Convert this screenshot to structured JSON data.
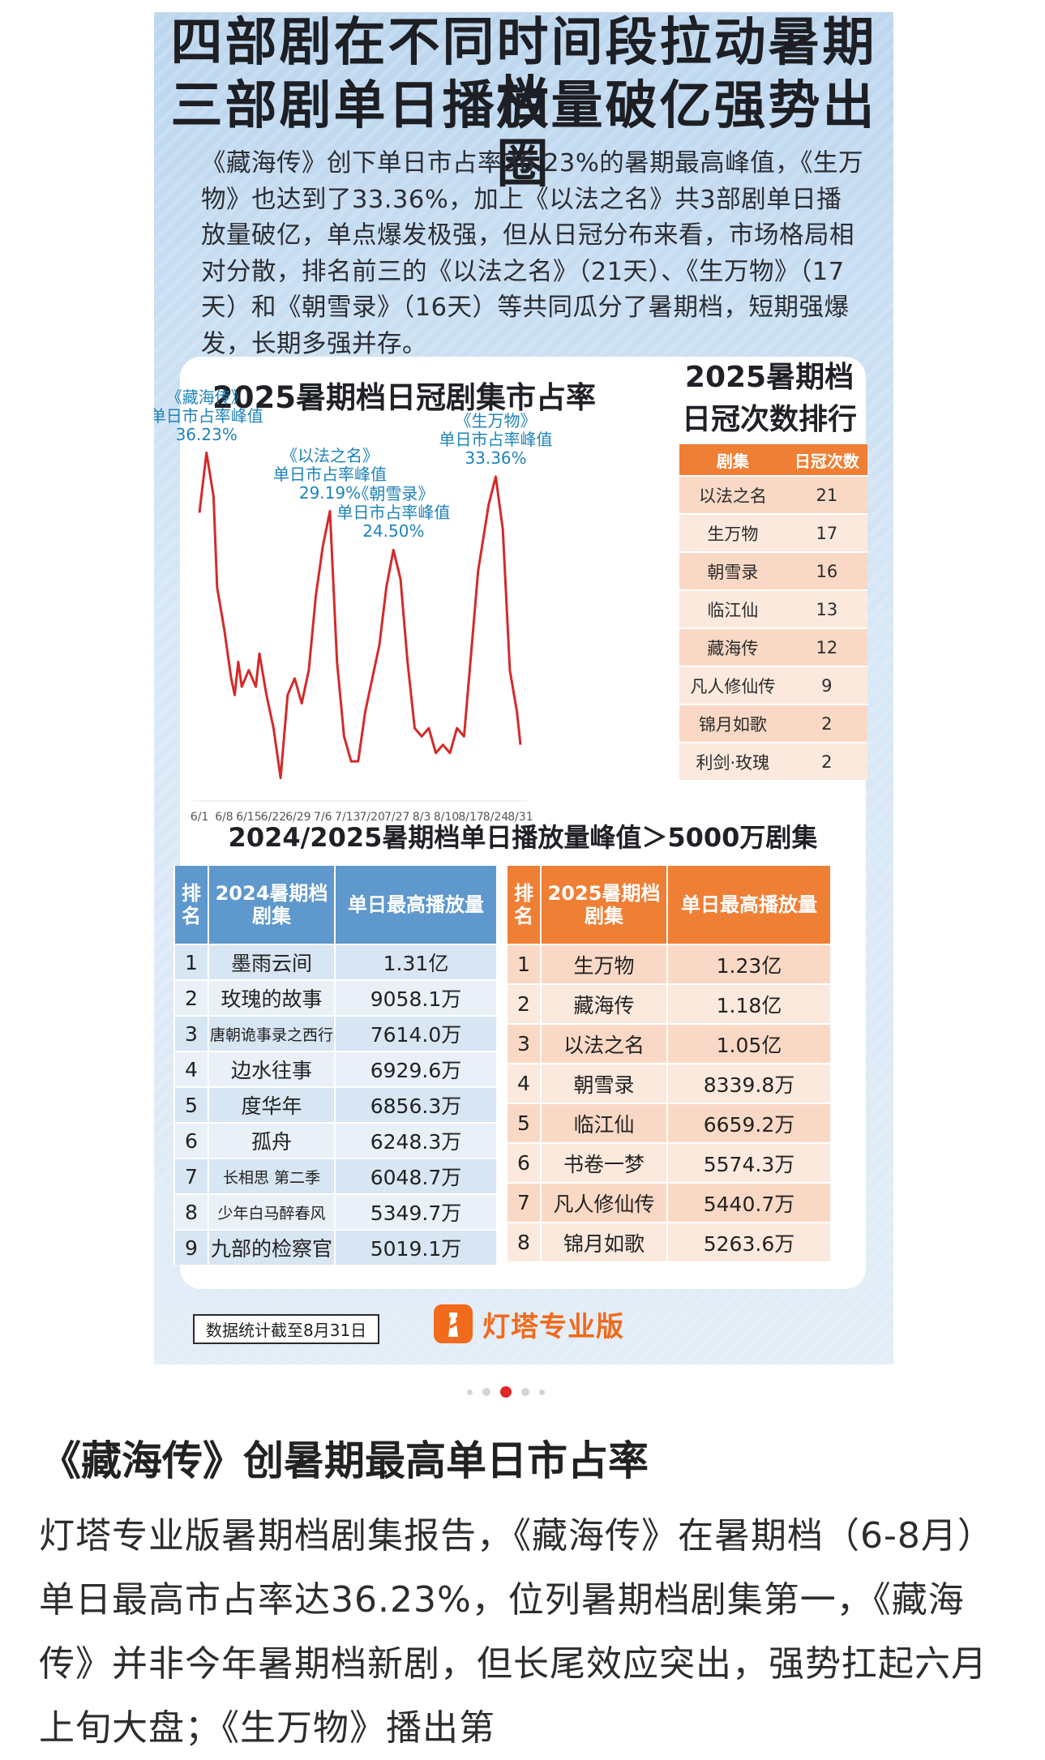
{
  "infographic": {
    "headline": [
      "四部剧在不同时间段拉动暑期档",
      "三部剧单日播放量破亿强势出圈"
    ],
    "intro": "《藏海传》创下单日市占率36.23%的暑期最高峰值，《生万物》也达到了33.36%，加上《以法之名》共3部剧单日播放量破亿，单点爆发极强，但从日冠分布来看，市场格局相对分散，排名前三的《以法之名》（21天）、《生万物》（17天）和《朝雪录》（16天）等共同瓜分了暑期档，短期强爆发，长期多强并存。",
    "footnote": "数据统计截至8月31日",
    "logo_text": "灯塔专业版"
  },
  "chart_data": [
    {
      "type": "line",
      "title": "2025暑期档日冠剧集市占率",
      "xlabel": "",
      "ylabel": "",
      "grid": false,
      "x_ticks": [
        "6/1",
        "6/8",
        "6/15",
        "6/22",
        "6/29",
        "7/6",
        "7/13",
        "7/20",
        "7/27",
        "8/3",
        "8/10",
        "8/17",
        "8/24",
        "8/31"
      ],
      "series_color": "#d42a2a",
      "points": [
        {
          "x": "6/1",
          "y": 29
        },
        {
          "x": "6/3",
          "y": 36.23
        },
        {
          "x": "6/5",
          "y": 31
        },
        {
          "x": "6/6",
          "y": 20
        },
        {
          "x": "6/8",
          "y": 15
        },
        {
          "x": "6/10",
          "y": 9
        },
        {
          "x": "6/11",
          "y": 7
        },
        {
          "x": "6/12",
          "y": 11
        },
        {
          "x": "6/13",
          "y": 8
        },
        {
          "x": "6/15",
          "y": 10
        },
        {
          "x": "6/17",
          "y": 8
        },
        {
          "x": "6/18",
          "y": 12
        },
        {
          "x": "6/20",
          "y": 7
        },
        {
          "x": "6/22",
          "y": 3
        },
        {
          "x": "6/24",
          "y": -3
        },
        {
          "x": "6/26",
          "y": 7
        },
        {
          "x": "6/28",
          "y": 9
        },
        {
          "x": "6/30",
          "y": 6
        },
        {
          "x": "7/2",
          "y": 10
        },
        {
          "x": "7/4",
          "y": 19
        },
        {
          "x": "7/6",
          "y": 25
        },
        {
          "x": "7/8",
          "y": 29.19
        },
        {
          "x": "7/10",
          "y": 11
        },
        {
          "x": "7/12",
          "y": 2
        },
        {
          "x": "7/14",
          "y": -1
        },
        {
          "x": "7/16",
          "y": -1
        },
        {
          "x": "7/18",
          "y": 5
        },
        {
          "x": "7/20",
          "y": 9
        },
        {
          "x": "7/22",
          "y": 13
        },
        {
          "x": "7/24",
          "y": 20
        },
        {
          "x": "7/26",
          "y": 24.5
        },
        {
          "x": "7/28",
          "y": 21
        },
        {
          "x": "7/30",
          "y": 11
        },
        {
          "x": "8/1",
          "y": 3
        },
        {
          "x": "8/3",
          "y": 2
        },
        {
          "x": "8/5",
          "y": 3
        },
        {
          "x": "8/7",
          "y": 0
        },
        {
          "x": "8/9",
          "y": 1
        },
        {
          "x": "8/11",
          "y": 0
        },
        {
          "x": "8/13",
          "y": 3
        },
        {
          "x": "8/15",
          "y": 2
        },
        {
          "x": "8/17",
          "y": 12
        },
        {
          "x": "8/19",
          "y": 22
        },
        {
          "x": "8/22",
          "y": 30
        },
        {
          "x": "8/24",
          "y": 33.36
        },
        {
          "x": "8/26",
          "y": 27
        },
        {
          "x": "8/28",
          "y": 10
        },
        {
          "x": "8/30",
          "y": 5
        },
        {
          "x": "8/31",
          "y": 1
        }
      ],
      "annotations": [
        {
          "x": "6/3",
          "y": 36.23,
          "name": "《藏海传》",
          "label": "单日市占率峰值",
          "value": "36.23%"
        },
        {
          "x": "7/8",
          "y": 29.19,
          "name": "《以法之名》",
          "label": "单日市占率峰值",
          "value": "29.19%"
        },
        {
          "x": "7/26",
          "y": 24.5,
          "name": "《朝雪录》",
          "label": "单日市占率峰值",
          "value": "24.50%"
        },
        {
          "x": "8/24",
          "y": 33.36,
          "name": "《生万物》",
          "label": "单日市占率峰值",
          "value": "33.36%"
        }
      ]
    },
    {
      "type": "table",
      "title": [
        "2025暑期档",
        "日冠次数排行"
      ],
      "headers": [
        "剧集",
        "日冠次数"
      ],
      "rows": [
        [
          "以法之名",
          "21"
        ],
        [
          "生万物",
          "17"
        ],
        [
          "朝雪录",
          "16"
        ],
        [
          "临江仙",
          "13"
        ],
        [
          "藏海传",
          "12"
        ],
        [
          "凡人修仙传",
          "9"
        ],
        [
          "锦月如歌",
          "2"
        ],
        [
          "利剑·玫瑰",
          "2"
        ]
      ]
    },
    {
      "type": "table",
      "title": "2024/2025暑期档单日播放量峰值＞5000万剧集",
      "headers": [
        "排名",
        "2024暑期档剧集",
        "单日最高播放量"
      ],
      "rows": [
        [
          "1",
          "墨雨云间",
          "1.31亿"
        ],
        [
          "2",
          "玫瑰的故事",
          "9058.1万"
        ],
        [
          "3",
          "唐朝诡事录之西行",
          "7614.0万"
        ],
        [
          "4",
          "边水往事",
          "6929.6万"
        ],
        [
          "5",
          "度华年",
          "6856.3万"
        ],
        [
          "6",
          "孤舟",
          "6248.3万"
        ],
        [
          "7",
          "长相思 第二季",
          "6048.7万"
        ],
        [
          "8",
          "少年白马醉春风",
          "5349.7万"
        ],
        [
          "9",
          "九部的检察官",
          "5019.1万"
        ]
      ]
    },
    {
      "type": "table",
      "headers": [
        "排名",
        "2025暑期档剧集",
        "单日最高播放量"
      ],
      "rows": [
        [
          "1",
          "生万物",
          "1.23亿"
        ],
        [
          "2",
          "藏海传",
          "1.18亿"
        ],
        [
          "3",
          "以法之名",
          "1.05亿"
        ],
        [
          "4",
          "朝雪录",
          "8339.8万"
        ],
        [
          "5",
          "临江仙",
          "6659.2万"
        ],
        [
          "6",
          "书卷一梦",
          "5574.3万"
        ],
        [
          "7",
          "凡人修仙传",
          "5440.7万"
        ],
        [
          "8",
          "锦月如歌",
          "5263.6万"
        ]
      ]
    }
  ],
  "carousel": {
    "count": 5,
    "active_index": 2
  },
  "article": {
    "title": "《藏海传》创暑期最高单日市占率",
    "body": "灯塔专业版暑期档剧集报告，《藏海传》在暑期档（6-8月）单日最高市占率达36.23%，位列暑期档剧集第一，《藏海传》并非今年暑期档新剧，但长尾效应突出，强势扛起六月上旬大盘；《生万物》播出第"
  }
}
